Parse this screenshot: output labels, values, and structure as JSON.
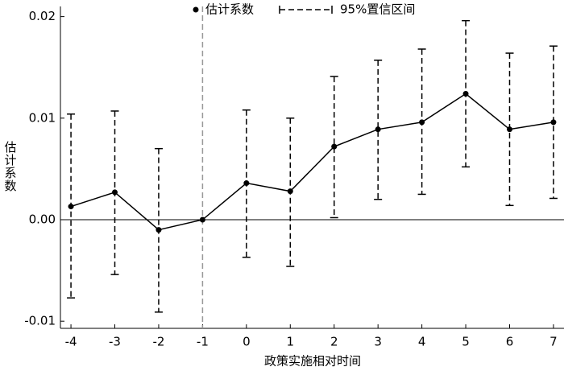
{
  "chart_data": {
    "type": "errorbar",
    "x": [
      -4,
      -3,
      -2,
      -1,
      0,
      1,
      2,
      3,
      4,
      5,
      6,
      7
    ],
    "series": [
      {
        "name": "估计系数",
        "color": "#000000",
        "values": [
          0.0013,
          0.0027,
          -0.001,
          0,
          0.0036,
          0.0028,
          0.0072,
          0.0089,
          0.0096,
          0.0124,
          0.0089,
          0.0096
        ]
      }
    ],
    "ci": {
      "name": "95%置信区间",
      "lower": [
        -0.0077,
        -0.0054,
        -0.0091,
        null,
        -0.0037,
        -0.0046,
        0.0002,
        0.002,
        0.0025,
        0.0052,
        0.0014,
        0.0021
      ],
      "upper": [
        0.0104,
        0.0107,
        0.007,
        null,
        0.0108,
        0.01,
        0.0141,
        0.0157,
        0.0168,
        0.0196,
        0.0164,
        0.0171
      ]
    },
    "xlabel": "政策实施相对时间",
    "ylabel": "估计系数",
    "xlim": [
      -4.24,
      7.24
    ],
    "ylim": [
      -0.0107,
      0.021
    ],
    "xticks": [
      -4,
      -3,
      -2,
      -1,
      0,
      1,
      2,
      3,
      4,
      5,
      6,
      7
    ],
    "yticks": [
      -0.01,
      {
        "value": 0,
        "label": "0.00"
      },
      0.01,
      0.02
    ],
    "vline": -1,
    "hline": 0
  }
}
